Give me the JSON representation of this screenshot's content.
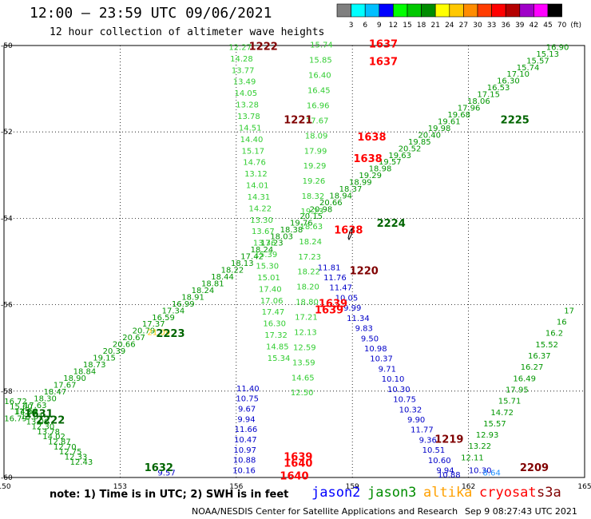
{
  "header": {
    "title": "12:00 – 23:59 UTC 09/06/2021",
    "subtitle": "12 hour collection of altimeter wave heights"
  },
  "legend": {
    "values": [
      "3",
      "6",
      "9",
      "12",
      "15",
      "18",
      "21",
      "24",
      "27",
      "30",
      "33",
      "36",
      "39",
      "42",
      "45",
      "70",
      "(ft)"
    ],
    "colors": [
      "#7f7f7f",
      "#00ffff",
      "#00bfff",
      "#0000ff",
      "#00ff00",
      "#00c800",
      "#008c00",
      "#ffff00",
      "#ffc800",
      "#ff8c00",
      "#ff3c00",
      "#ff0000",
      "#b40000",
      "#a000c8",
      "#ff00ff",
      "#000000"
    ]
  },
  "map": {
    "x_ticks": [
      "150",
      "153",
      "156",
      "159",
      "162",
      "165"
    ],
    "y_ticks": [
      "-50",
      "-52",
      "-54",
      "-56",
      "-58",
      "-60"
    ],
    "time_labels": [
      {
        "text": "1222",
        "color": "#800000",
        "lon": 156.7,
        "lat": -50.1
      },
      {
        "text": "1637",
        "color": "#ff0000",
        "lon": 159.8,
        "lat": -50.05
      },
      {
        "text": "1637",
        "color": "#ff0000",
        "lon": 159.8,
        "lat": -50.45
      },
      {
        "text": "1221",
        "color": "#800000",
        "lon": 157.6,
        "lat": -51.8
      },
      {
        "text": "2225",
        "color": "#006400",
        "lon": 163.2,
        "lat": -51.8
      },
      {
        "text": "1638",
        "color": "#ff0000",
        "lon": 159.5,
        "lat": -52.2
      },
      {
        "text": "1638",
        "color": "#ff0000",
        "lon": 159.4,
        "lat": -52.7
      },
      {
        "text": "2224",
        "color": "#006400",
        "lon": 160.0,
        "lat": -54.2
      },
      {
        "text": "1638",
        "color": "#ff0000",
        "lon": 158.9,
        "lat": -54.35
      },
      {
        "text": "1220",
        "color": "#800000",
        "lon": 159.3,
        "lat": -55.3
      },
      {
        "text": "1639",
        "color": "#ff0000",
        "lon": 158.5,
        "lat": -56.05
      },
      {
        "text": "1639",
        "color": "#ff0000",
        "lon": 158.4,
        "lat": -56.2
      },
      {
        "text": "2223",
        "color": "#006400",
        "lon": 154.3,
        "lat": -56.75
      },
      {
        "text": "1631",
        "color": "#006400",
        "lon": 150.9,
        "lat": -58.6
      },
      {
        "text": "2222",
        "color": "#006400",
        "lon": 151.2,
        "lat": -58.75
      },
      {
        "text": "1219",
        "color": "#800000",
        "lon": 161.5,
        "lat": -59.2
      },
      {
        "text": "1632",
        "color": "#006400",
        "lon": 154.0,
        "lat": -59.85
      },
      {
        "text": "1639",
        "color": "#ff0000",
        "lon": 157.6,
        "lat": -59.6
      },
      {
        "text": "1640",
        "color": "#ff0000",
        "lon": 157.6,
        "lat": -59.75
      },
      {
        "text": "1640",
        "color": "#ff0000",
        "lon": 157.5,
        "lat": -60.05
      },
      {
        "text": "2209",
        "color": "#800000",
        "lon": 163.7,
        "lat": -59.85
      }
    ],
    "tracks": [
      {
        "name": "j3-sw",
        "color": "#009600",
        "start": [
          150.3,
          -58.3
        ],
        "end": [
          152.0,
          -59.7
        ],
        "values": [
          "16.72",
          "15.60",
          "14.69",
          "13.81",
          "13.00",
          "12.30",
          "13.78",
          "14.02",
          "12.87",
          "12.70",
          "12.75",
          "12.33",
          "12.43"
        ]
      },
      {
        "name": "j3-ne",
        "color": "#009600",
        "start": [
          150.3,
          -58.7
        ],
        "end": [
          164.3,
          -50.1
        ],
        "values": [
          "16.79",
          "17.30",
          "17.63",
          "18.30",
          "18.47",
          "17.67",
          "18.90",
          "18.84",
          "18.73",
          "19.15",
          "20.39",
          "20.66",
          "20.67",
          "20.79",
          "17.37",
          "16.59",
          "17.34",
          "16.99",
          "18.91",
          "18.24",
          "18.81",
          "18.44",
          "18.22",
          "18.13",
          "17.42",
          "18.24",
          "17.23",
          "18.03",
          "18.38",
          "19.76",
          "20.15",
          "20.98",
          "20.66",
          "18.94",
          "18.37",
          "18.99",
          "19.29",
          "18.98",
          "19.57",
          "19.63",
          "20.52",
          "19.85",
          "20.40",
          "19.98",
          "19.61",
          "19.68",
          "17.96",
          "18.06",
          "17.15",
          "16.53",
          "16.30",
          "17.10",
          "15.74",
          "15.57",
          "15.13",
          "16.90"
        ]
      },
      {
        "name": "j3-east",
        "color": "#009600",
        "start": [
          164.6,
          -56.2
        ],
        "end": [
          162.1,
          -59.6
        ],
        "values": [
          "17",
          "16",
          "16.2",
          "15.52",
          "16.37",
          "16.27",
          "16.49",
          "17.95",
          "15.71",
          "14.72",
          "15.57",
          "12.93",
          "13.22",
          "12.11"
        ]
      },
      {
        "name": "cs-w",
        "color": "#32cd32",
        "start": [
          156.1,
          -50.1
        ],
        "end": [
          157.1,
          -57.3
        ],
        "values": [
          "12.27",
          "14.28",
          "13.77",
          "13.49",
          "14.05",
          "13.28",
          "13.78",
          "14.51",
          "14.40",
          "15.17",
          "14.76",
          "13.12",
          "14.01",
          "14.31",
          "14.22",
          "13.30",
          "13.67",
          "13.36",
          "15.39",
          "15.30",
          "15.01",
          "17.40",
          "17.06",
          "17.47",
          "16.30",
          "17.32",
          "14.85",
          "15.34"
        ]
      },
      {
        "name": "cs-e",
        "color": "#32cd32",
        "start": [
          158.2,
          -50.05
        ],
        "end": [
          157.7,
          -58.1
        ],
        "values": [
          "15.74",
          "15.85",
          "16.40",
          "16.45",
          "16.96",
          "17.67",
          "18.09",
          "17.99",
          "19.29",
          "19.26",
          "18.32",
          "19.23",
          "18.63",
          "18.24",
          "17.23",
          "18.22",
          "18.20",
          "18.80",
          "17.21",
          "12.13",
          "12.59",
          "13.59",
          "14.65",
          "12.50"
        ]
      },
      {
        "name": "j2-w",
        "color": "#0000c8",
        "start": [
          156.3,
          -58.0
        ],
        "end": [
          156.2,
          -59.9
        ],
        "values": [
          "11.40",
          "10.75",
          "9.67",
          "9.94",
          "11.66",
          "10.47",
          "10.97",
          "10.88",
          "10.16"
        ]
      },
      {
        "name": "j2-e",
        "color": "#0000c8",
        "start": [
          158.4,
          -55.2
        ],
        "end": [
          161.4,
          -59.9
        ],
        "values": [
          "11.81",
          "11.76",
          "11.47",
          "10.05",
          "9.99",
          "11.34",
          "9.83",
          "9.50",
          "10.98",
          "10.37",
          "9.71",
          "10.10",
          "10.30",
          "10.75",
          "10.32",
          "9.90",
          "11.77",
          "9.36",
          "10.51",
          "10.60",
          "9.94"
        ]
      },
      {
        "name": "j2-se",
        "color": "#0000c8",
        "start": [
          162.3,
          -59.9
        ],
        "end": [
          161.5,
          -60.0
        ],
        "values": [
          "10.30",
          "10.88"
        ]
      }
    ],
    "altika": [
      {
        "text": "21.09",
        "lon": 154.0,
        "lat": -56.7
      }
    ],
    "s3a": [
      {
        "text": "8.64",
        "lon": 162.6,
        "lat": -59.95
      }
    ],
    "extra_blue": [
      {
        "text": "9.57",
        "lon": 154.2,
        "lat": -59.95
      }
    ]
  },
  "footer": {
    "note": "note:  1) Time is in UTC;  2) SWH is in feet",
    "satellites": [
      {
        "name": "jason2",
        "color": "#0000ff"
      },
      {
        "name": "jason3",
        "color": "#008c00"
      },
      {
        "name": "altika",
        "color": "#ffa000"
      },
      {
        "name": "cryosat",
        "color": "#ff0000"
      },
      {
        "name": "s3a",
        "color": "#800000"
      }
    ],
    "credit": "NOAA/NESDIS Center for Satellite Applications and Research",
    "timestamp": "Sep  9 08:27:43 UTC 2021"
  }
}
